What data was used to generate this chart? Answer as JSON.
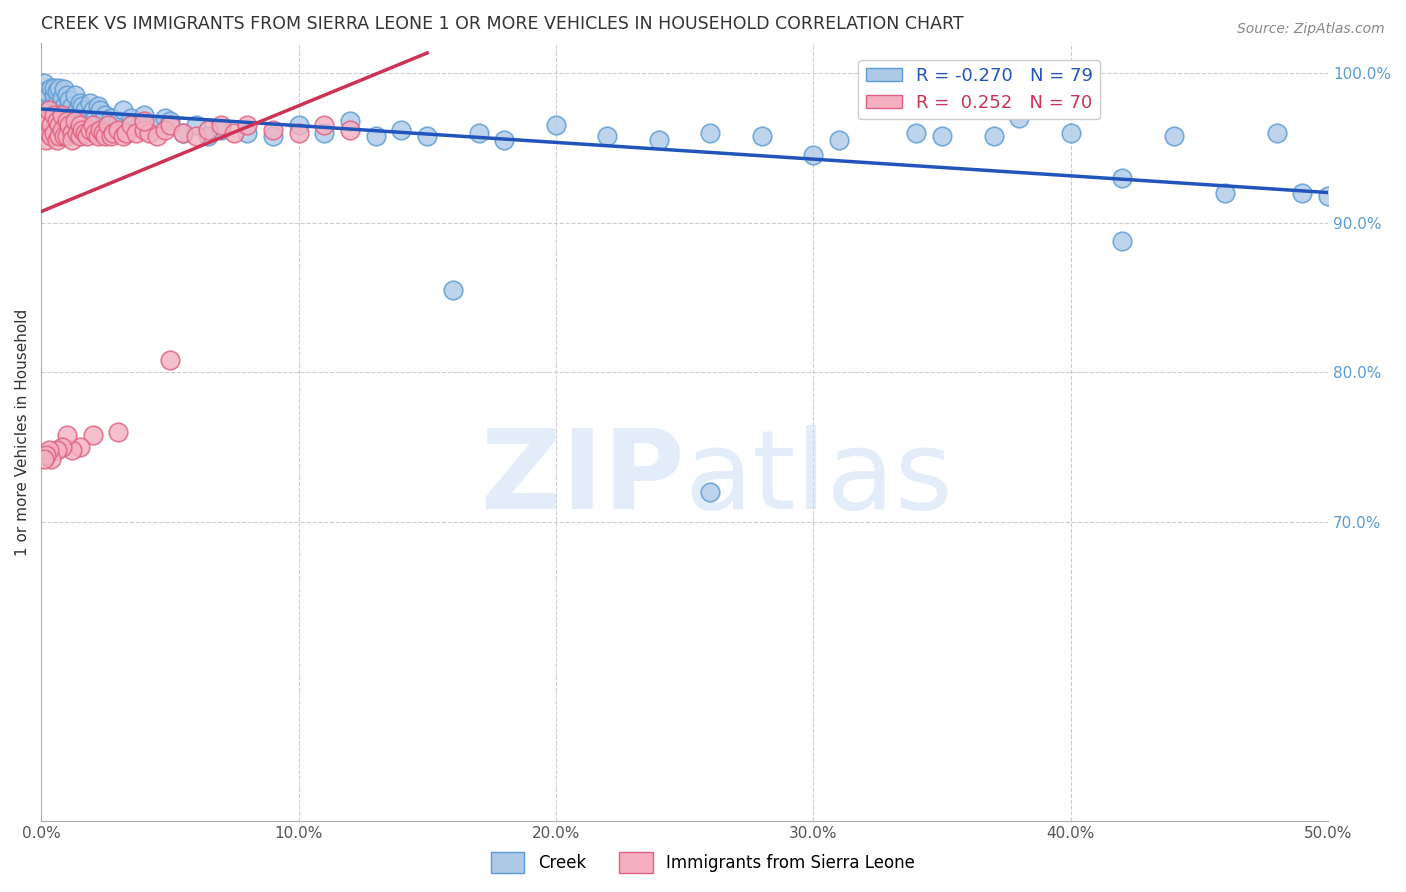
{
  "title": "CREEK VS IMMIGRANTS FROM SIERRA LEONE 1 OR MORE VEHICLES IN HOUSEHOLD CORRELATION CHART",
  "source": "Source: ZipAtlas.com",
  "ylabel": "1 or more Vehicles in Household",
  "xlim": [
    0.0,
    0.5
  ],
  "ylim": [
    0.5,
    1.02
  ],
  "xtick_labels": [
    "0.0%",
    "10.0%",
    "20.0%",
    "30.0%",
    "40.0%",
    "50.0%"
  ],
  "ytick_labels_right": [
    "90.0%",
    "80.0%",
    "70.0%"
  ],
  "ytick_vals_right": [
    0.9,
    0.8,
    0.7
  ],
  "ytick_top_label": "100.0%",
  "ytick_top_val": 1.0,
  "xtick_vals": [
    0.0,
    0.1,
    0.2,
    0.3,
    0.4,
    0.5
  ],
  "creek_color": "#aec9e8",
  "creek_edge_color": "#5b9bd5",
  "sierra_leone_color": "#f4b0c0",
  "sierra_leone_edge_color": "#e06080",
  "creek_line_color": "#2255bb",
  "sierra_leone_line_color": "#cc3355",
  "legend_creek_r": "-0.270",
  "legend_creek_n": "79",
  "legend_sierra_leone_r": "0.252",
  "legend_sierra_leone_n": "70",
  "creek_x": [
    0.001,
    0.002,
    0.003,
    0.003,
    0.004,
    0.004,
    0.005,
    0.005,
    0.005,
    0.006,
    0.006,
    0.007,
    0.007,
    0.008,
    0.008,
    0.009,
    0.009,
    0.01,
    0.01,
    0.011,
    0.012,
    0.012,
    0.013,
    0.014,
    0.015,
    0.015,
    0.016,
    0.017,
    0.018,
    0.019,
    0.02,
    0.021,
    0.022,
    0.023,
    0.025,
    0.027,
    0.03,
    0.032,
    0.035,
    0.038,
    0.04,
    0.045,
    0.048,
    0.05,
    0.055,
    0.06,
    0.065,
    0.07,
    0.08,
    0.09,
    0.1,
    0.11,
    0.12,
    0.13,
    0.14,
    0.15,
    0.16,
    0.17,
    0.18,
    0.2,
    0.22,
    0.24,
    0.26,
    0.28,
    0.31,
    0.34,
    0.37,
    0.38,
    0.4,
    0.42,
    0.44,
    0.46,
    0.48,
    0.49,
    0.5,
    0.42,
    0.35,
    0.3,
    0.26
  ],
  "creek_y": [
    0.993,
    0.988,
    0.985,
    0.975,
    0.99,
    0.978,
    0.985,
    0.972,
    0.99,
    0.98,
    0.988,
    0.976,
    0.99,
    0.983,
    0.975,
    0.989,
    0.978,
    0.985,
    0.975,
    0.982,
    0.978,
    0.97,
    0.985,
    0.975,
    0.98,
    0.968,
    0.978,
    0.975,
    0.97,
    0.98,
    0.975,
    0.97,
    0.978,
    0.975,
    0.972,
    0.97,
    0.968,
    0.975,
    0.97,
    0.965,
    0.972,
    0.965,
    0.97,
    0.968,
    0.96,
    0.965,
    0.958,
    0.962,
    0.96,
    0.958,
    0.965,
    0.96,
    0.968,
    0.958,
    0.962,
    0.958,
    0.855,
    0.96,
    0.955,
    0.965,
    0.958,
    0.955,
    0.96,
    0.958,
    0.955,
    0.96,
    0.958,
    0.97,
    0.96,
    0.93,
    0.958,
    0.92,
    0.96,
    0.92,
    0.918,
    0.888,
    0.958,
    0.945,
    0.72
  ],
  "sierra_leone_x": [
    0.001,
    0.002,
    0.003,
    0.003,
    0.004,
    0.004,
    0.005,
    0.005,
    0.006,
    0.006,
    0.007,
    0.007,
    0.008,
    0.008,
    0.009,
    0.01,
    0.01,
    0.011,
    0.012,
    0.012,
    0.013,
    0.014,
    0.015,
    0.015,
    0.016,
    0.017,
    0.018,
    0.019,
    0.02,
    0.021,
    0.022,
    0.023,
    0.024,
    0.025,
    0.026,
    0.027,
    0.028,
    0.03,
    0.032,
    0.033,
    0.035,
    0.037,
    0.04,
    0.042,
    0.045,
    0.048,
    0.05,
    0.055,
    0.06,
    0.065,
    0.07,
    0.075,
    0.08,
    0.09,
    0.1,
    0.11,
    0.12,
    0.05,
    0.04,
    0.03,
    0.02,
    0.015,
    0.012,
    0.01,
    0.008,
    0.006,
    0.004,
    0.003,
    0.002,
    0.001
  ],
  "sierra_leone_y": [
    0.968,
    0.955,
    0.975,
    0.96,
    0.965,
    0.958,
    0.972,
    0.96,
    0.968,
    0.955,
    0.965,
    0.958,
    0.972,
    0.962,
    0.958,
    0.968,
    0.958,
    0.965,
    0.96,
    0.955,
    0.968,
    0.96,
    0.965,
    0.958,
    0.962,
    0.96,
    0.958,
    0.962,
    0.965,
    0.96,
    0.958,
    0.962,
    0.96,
    0.958,
    0.965,
    0.958,
    0.96,
    0.962,
    0.958,
    0.96,
    0.965,
    0.96,
    0.962,
    0.96,
    0.958,
    0.962,
    0.965,
    0.96,
    0.958,
    0.962,
    0.965,
    0.96,
    0.965,
    0.962,
    0.96,
    0.965,
    0.962,
    0.808,
    0.968,
    0.76,
    0.758,
    0.75,
    0.748,
    0.758,
    0.75,
    0.748,
    0.742,
    0.748,
    0.745,
    0.742
  ],
  "creek_trendline_x": [
    0.0,
    0.5
  ],
  "sierra_leone_trendline_x": [
    0.0,
    0.15
  ]
}
